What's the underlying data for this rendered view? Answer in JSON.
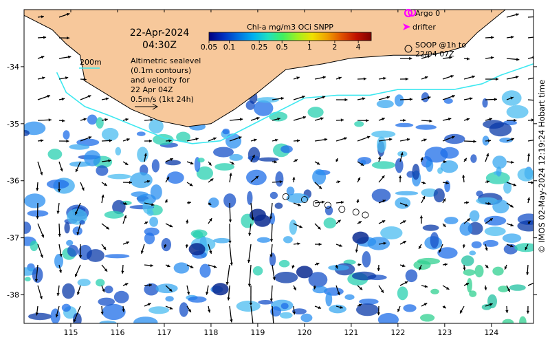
{
  "header": {
    "date": "22-Apr-2024",
    "time": "04:30Z"
  },
  "colorbar": {
    "title": "Chl-a mg/m3 OCi SNPP",
    "ticks": [
      "0.05",
      "0.1",
      "0.25",
      "0.5",
      "1",
      "2",
      "4"
    ],
    "colors": [
      "#000080",
      "#0030c0",
      "#0070e0",
      "#00b0f0",
      "#20e0c0",
      "#40f060",
      "#a0f020",
      "#f0e000",
      "#f0a000",
      "#e05000",
      "#c01000",
      "#800000"
    ]
  },
  "annotations": {
    "depth_label": "200m",
    "altimetry_lines": [
      "Altimetric sealevel",
      "(0.1m contours)",
      "and velocity for",
      "22 Apr 04Z",
      "0.5m/s (1kt 24h)"
    ]
  },
  "legend": {
    "argo": "Argo 0",
    "drifter": "drifter",
    "soop_lines": [
      "SOOP @1h to",
      "22/04 07Z"
    ]
  },
  "axes": {
    "lon_ticks": [
      "115",
      "116",
      "117",
      "118",
      "119",
      "120",
      "121",
      "122",
      "123",
      "124"
    ],
    "lat_ticks": [
      "-34",
      "-35",
      "-36",
      "-37",
      "-38"
    ]
  },
  "credit": "© IMOS 02-May-2024 12:19:24 Hobart time",
  "map_data": {
    "lon_range": [
      114.0,
      124.9
    ],
    "lat_range": [
      -38.5,
      -33.0
    ],
    "coastline": [
      [
        114.0,
        -33.0
      ],
      [
        114.0,
        -33.1
      ],
      [
        114.6,
        -33.35
      ],
      [
        114.9,
        -33.6
      ],
      [
        115.2,
        -33.8
      ],
      [
        115.3,
        -34.25
      ],
      [
        115.7,
        -34.45
      ],
      [
        116.3,
        -34.75
      ],
      [
        116.9,
        -34.95
      ],
      [
        117.5,
        -35.05
      ],
      [
        118.0,
        -35.0
      ],
      [
        118.5,
        -34.75
      ],
      [
        119.0,
        -34.45
      ],
      [
        119.6,
        -34.05
      ],
      [
        120.4,
        -33.95
      ],
      [
        121.0,
        -33.85
      ],
      [
        121.9,
        -33.8
      ],
      [
        122.5,
        -33.8
      ],
      [
        123.0,
        -33.75
      ],
      [
        123.4,
        -33.65
      ],
      [
        123.7,
        -33.4
      ],
      [
        124.0,
        -33.2
      ],
      [
        124.3,
        -33.0
      ]
    ],
    "contour_200m": [
      [
        114.7,
        -34.1
      ],
      [
        114.9,
        -34.45
      ],
      [
        115.3,
        -34.7
      ],
      [
        115.8,
        -34.85
      ],
      [
        116.4,
        -35.05
      ],
      [
        117.0,
        -35.25
      ],
      [
        117.6,
        -35.35
      ],
      [
        118.2,
        -35.3
      ],
      [
        118.8,
        -35.05
      ],
      [
        119.4,
        -34.8
      ],
      [
        120.0,
        -34.55
      ],
      [
        120.7,
        -34.5
      ],
      [
        121.4,
        -34.5
      ],
      [
        122.0,
        -34.4
      ],
      [
        122.6,
        -34.4
      ],
      [
        123.2,
        -34.4
      ],
      [
        123.8,
        -34.3
      ],
      [
        124.2,
        -34.15
      ],
      [
        124.9,
        -33.95
      ]
    ],
    "soop_positions": [
      [
        119.6,
        -36.28
      ],
      [
        120.0,
        -36.33
      ],
      [
        120.25,
        -36.4
      ],
      [
        120.5,
        -36.43
      ],
      [
        120.8,
        -36.5
      ],
      [
        121.1,
        -36.55
      ],
      [
        121.3,
        -36.6
      ]
    ],
    "argo_position": [
      122.3,
      -33.05
    ]
  }
}
